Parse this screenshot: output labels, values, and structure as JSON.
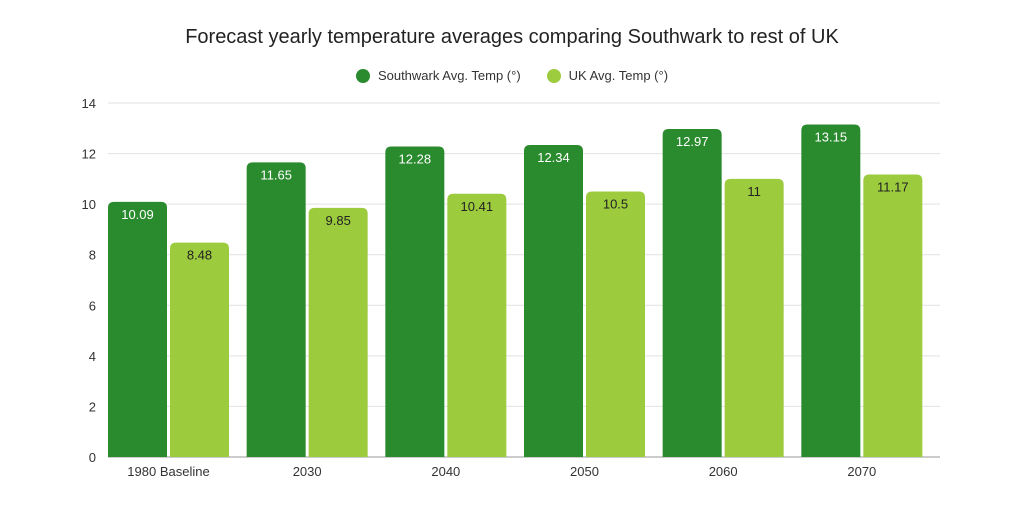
{
  "chart_data": {
    "type": "bar",
    "title": "Forecast yearly temperature averages comparing Southwark to rest of UK",
    "categories": [
      "1980 Baseline",
      "2030",
      "2040",
      "2050",
      "2060",
      "2070"
    ],
    "series": [
      {
        "name": "Southwark Avg. Temp (°)",
        "values": [
          10.09,
          11.65,
          12.28,
          12.34,
          12.97,
          13.15
        ],
        "color": "#2a8a2e",
        "label_color": "#ffffff"
      },
      {
        "name": "UK Avg. Temp (°)",
        "values": [
          8.48,
          9.85,
          10.41,
          10.5,
          11,
          11.17
        ],
        "color": "#9ccb3e",
        "label_color": "#222222"
      }
    ],
    "ylim": [
      0,
      14
    ],
    "yticks": [
      0,
      2,
      4,
      6,
      8,
      10,
      12,
      14
    ],
    "grid": true,
    "legend": "top"
  }
}
